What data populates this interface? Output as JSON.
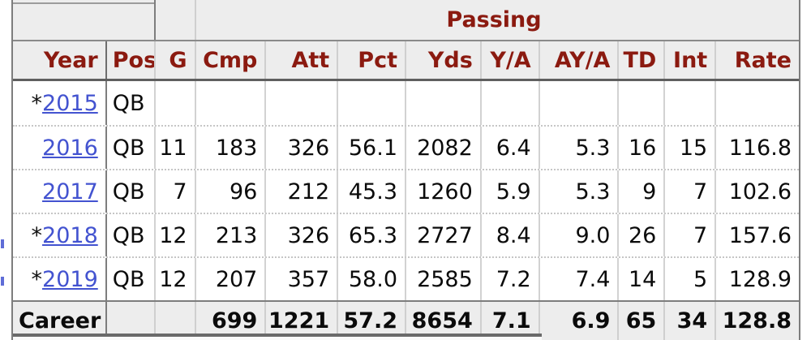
{
  "table": {
    "group_header": {
      "passing": "Passing"
    },
    "columns": [
      "Year",
      "Pos",
      "G",
      "Cmp",
      "Att",
      "Pct",
      "Yds",
      "Y/A",
      "AY/A",
      "TD",
      "Int",
      "Rate"
    ],
    "rows": [
      {
        "year_prefix": "*",
        "year": "2015",
        "pos": "QB",
        "stats": [
          "",
          "",
          "",
          "",
          "",
          "",
          "",
          "",
          "",
          ""
        ]
      },
      {
        "year_prefix": "",
        "year": "2016",
        "pos": "QB",
        "stats": [
          "11",
          "183",
          "326",
          "56.1",
          "2082",
          "6.4",
          "5.3",
          "16",
          "15",
          "116.8"
        ]
      },
      {
        "year_prefix": "",
        "year": "2017",
        "pos": "QB",
        "stats": [
          "7",
          "96",
          "212",
          "45.3",
          "1260",
          "5.9",
          "5.3",
          "9",
          "7",
          "102.6"
        ]
      },
      {
        "year_prefix": "*",
        "year": "2018",
        "pos": "QB",
        "stats": [
          "12",
          "213",
          "326",
          "65.3",
          "2727",
          "8.4",
          "9.0",
          "26",
          "7",
          "157.6"
        ]
      },
      {
        "year_prefix": "*",
        "year": "2019",
        "pos": "QB",
        "stats": [
          "12",
          "207",
          "357",
          "58.0",
          "2585",
          "7.2",
          "7.4",
          "14",
          "5",
          "128.9"
        ]
      }
    ],
    "career": {
      "label": "Career",
      "pos": "",
      "stats": [
        "",
        "699",
        "1221",
        "57.2",
        "8654",
        "7.1",
        "6.9",
        "65",
        "34",
        "128.8"
      ]
    }
  },
  "colors": {
    "header_text": "#8b1a10",
    "link": "#4353d0",
    "header_bg": "#ededed",
    "body_bg": "#ffffff",
    "dark_border": "#6e6e6e",
    "light_border": "#d2d2d2"
  }
}
